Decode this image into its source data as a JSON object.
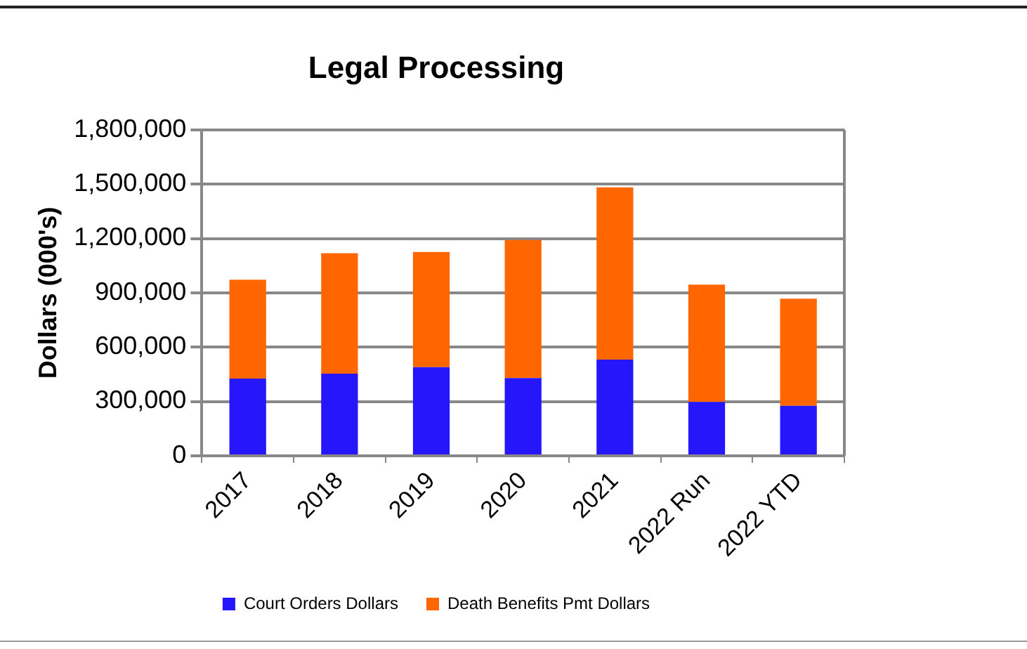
{
  "chart_data": {
    "type": "bar",
    "title": "Legal Processing",
    "ylabel": "Dollars (000's)",
    "categories": [
      "2017",
      "2018",
      "2019",
      "2020",
      "2021",
      "2022 Run",
      "2022 YTD"
    ],
    "stacked": true,
    "series": [
      {
        "name": "Court Orders Dollars",
        "color": "#2616fb",
        "values": [
          426000,
          453000,
          489000,
          429000,
          531000,
          297000,
          276000
        ]
      },
      {
        "name": "Death Benefits Pmt Dollars",
        "color": "#ff6600",
        "values": [
          546000,
          666000,
          636000,
          762000,
          951000,
          648000,
          591000
        ]
      }
    ],
    "ylim": [
      0,
      1800000
    ],
    "yticks": [
      0,
      {
        "value": 300000,
        "label": "300,000"
      },
      {
        "value": 600000,
        "label": "600,000"
      },
      {
        "value": 900000,
        "label": "900,000"
      },
      {
        "value": 1200000,
        "label": "1,200,000"
      },
      {
        "value": 1500000,
        "label": "1,500,000"
      },
      {
        "value": 1800000,
        "label": "1,800,000"
      }
    ],
    "grid": "y",
    "legend": "bottom"
  }
}
